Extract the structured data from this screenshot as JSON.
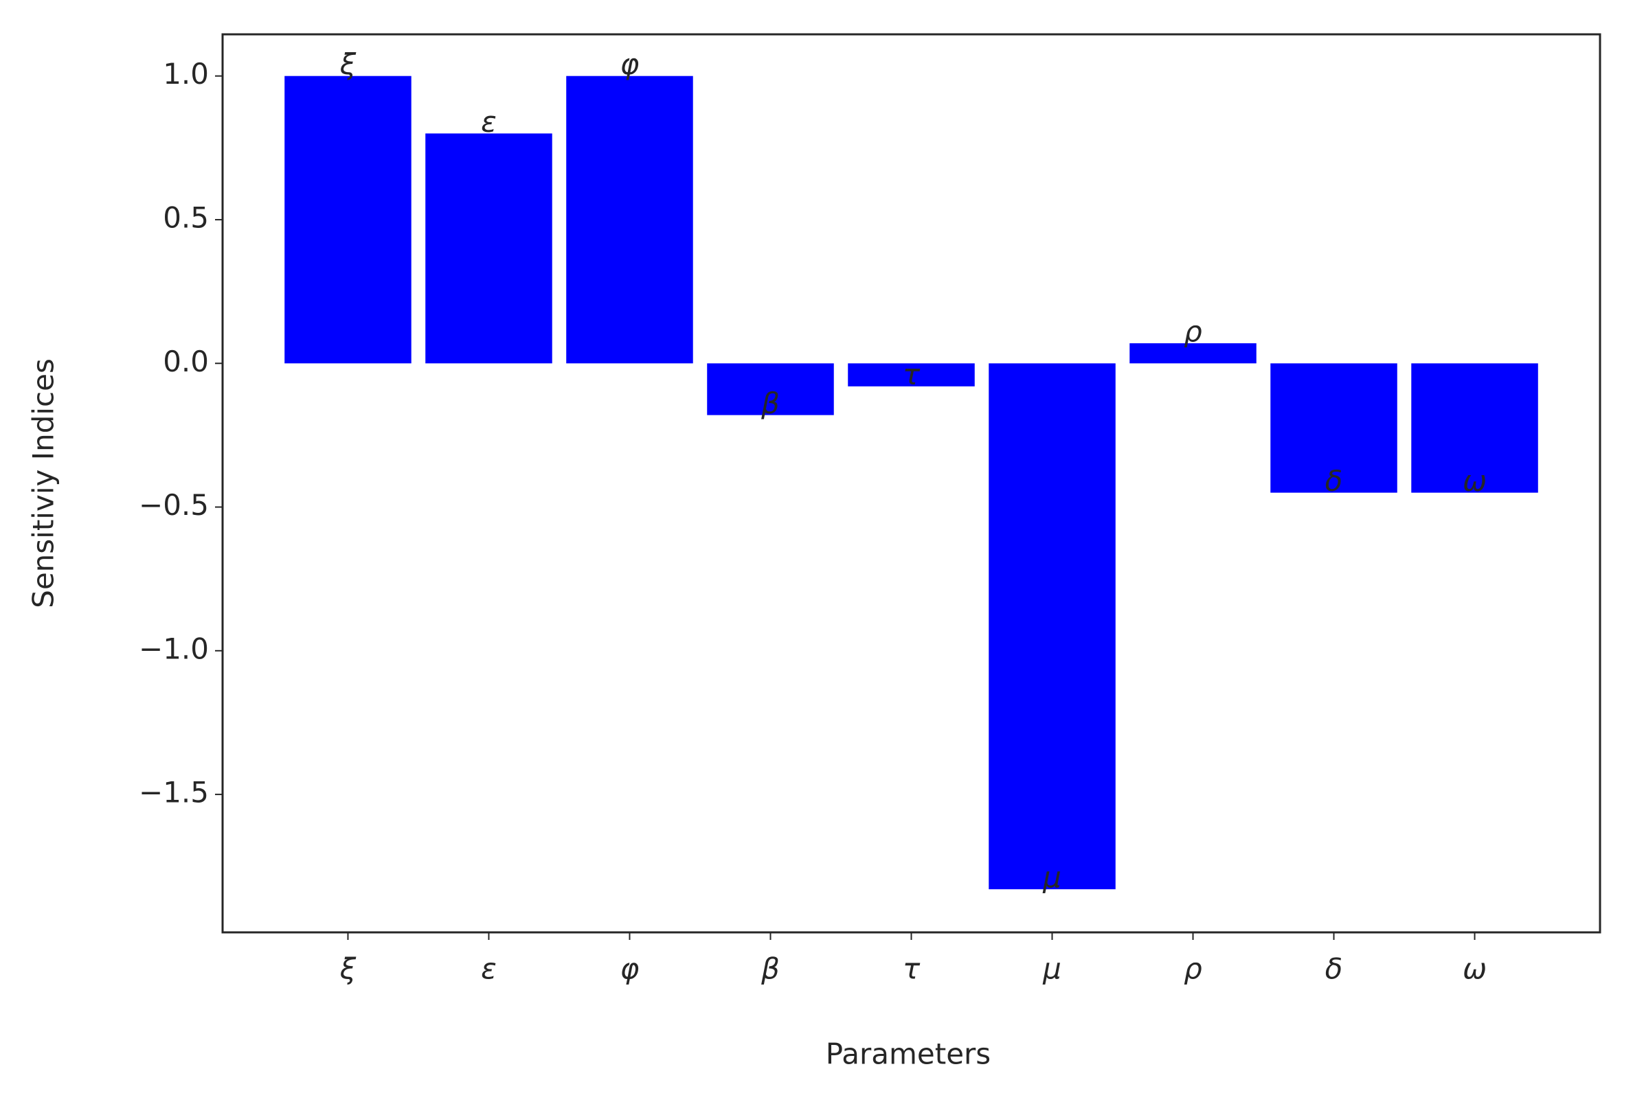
{
  "chart_data": {
    "type": "bar",
    "x_label": "Parameters",
    "y_label": "Sensitiviy Indices",
    "categories": [
      "ξ",
      "ε",
      "φ",
      "β",
      "τ",
      "μ",
      "ρ",
      "δ",
      "ω"
    ],
    "values": [
      1.0,
      0.8,
      1.0,
      -0.18,
      -0.08,
      -1.83,
      0.07,
      -0.45,
      -0.45
    ],
    "color": "#0000ff",
    "ylim": [
      -1.98,
      1.145
    ],
    "yticks": [
      {
        "value": 1,
        "label": "1.0"
      },
      {
        "value": 0.5,
        "label": "0.5"
      },
      {
        "value": 0,
        "label": "0.0"
      },
      {
        "value": -0.5,
        "label": "−0.5"
      },
      {
        "value": -1,
        "label": "−1.0"
      },
      {
        "value": -1.5,
        "label": "−1.5"
      }
    ],
    "grid": false
  }
}
